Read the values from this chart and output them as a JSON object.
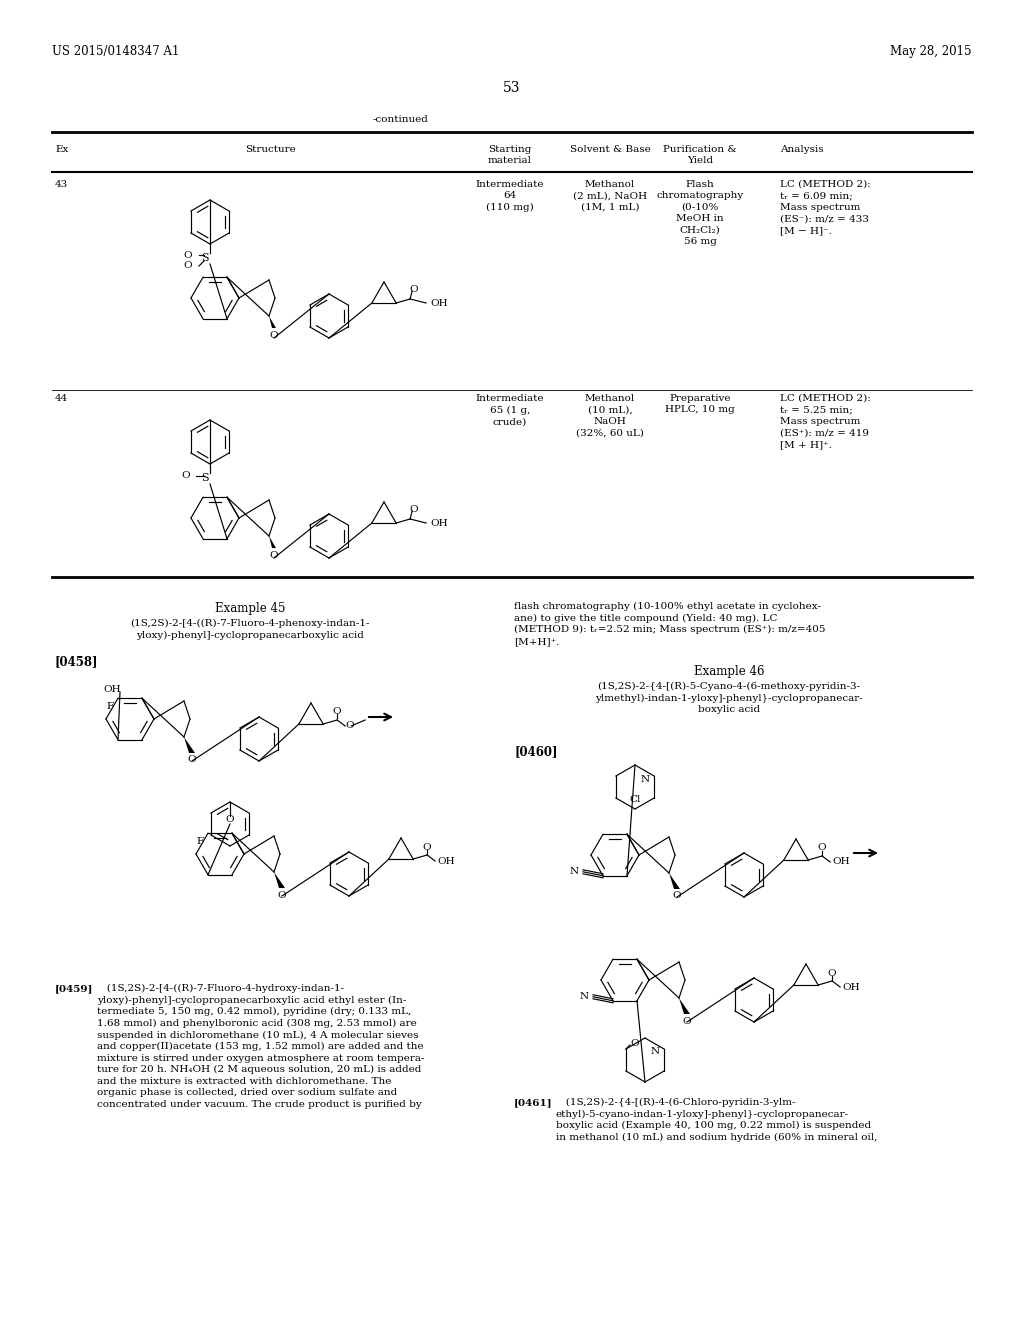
{
  "bg_color": "#ffffff",
  "header_left": "US 2015/0148347 A1",
  "header_right": "May 28, 2015",
  "page_number": "53",
  "continued_text": "-continued",
  "row_data": [
    {
      "ex": "43",
      "starting_material": "Intermediate\n64\n(110 mg)",
      "solvent_base": "Methanol\n(2 mL), NaOH\n(1M, 1 mL)",
      "purification_yield": "Flash\nchromatography\n(0-10%\nMeOH in\nCH₂Cl₂)\n56 mg",
      "analysis": "LC (METHOD 2):\ntᵣ = 6.09 min;\nMass spectrum\n(ES⁻): m/z = 433\n[M − H]⁻."
    },
    {
      "ex": "44",
      "starting_material": "Intermediate\n65 (1 g,\ncrude)",
      "solvent_base": "Methanol\n(10 mL),\nNaOH\n(32%, 60 uL)",
      "purification_yield": "Preparative\nHPLC, 10 mg",
      "analysis": "LC (METHOD 2):\ntᵣ = 5.25 min;\nMass spectrum\n(ES⁺): m/z = 419\n[M + H]⁺."
    }
  ],
  "example45_title": "Example 45",
  "example45_name": "(1S,2S)-2-[4-((R)-7-Fluoro-4-phenoxy-indan-1-\nyloxy)-phenyl]-cyclopropanecarboxylic acid",
  "example45_ref": "[0458]",
  "example45_cont_text": "flash chromatography (10-100% ethyl acetate in cyclohex-\nane) to give the title compound (Yield: 40 mg). LC\n(METHOD 9): tᵣ=2.52 min; Mass spectrum (ES⁺): m/z=405\n[M+H]⁺.",
  "example46_title": "Example 46",
  "example46_name": "(1S,2S)-2-{4-[(R)-5-Cyano-4-(6-methoxy-pyridin-3-\nylmethyl)-indan-1-yloxy]-phenyl}-cyclopropanecar-\nboxylic acid",
  "example46_ref": "[0460]",
  "ex45_para_label": "[0459]",
  "ex45_para_text": "   (1S,2S)-2-[4-((R)-7-Fluoro-4-hydroxy-indan-1-\nyloxy)-phenyl]-cyclopropanecarboxylic acid ethyl ester (In-\ntermediate 5, 150 mg, 0.42 mmol), pyridine (dry; 0.133 mL,\n1.68 mmol) and phenylboronic acid (308 mg, 2.53 mmol) are\nsuspended in dichloromethane (10 mL), 4 A molecular sieves\nand copper(II)acetate (153 mg, 1.52 mmol) are added and the\nmixture is stirred under oxygen atmosphere at room tempera-\nture for 20 h. NH₄OH (2 M aqueous solution, 20 mL) is added\nand the mixture is extracted with dichloromethane. The\norganic phase is collected, dried over sodium sulfate and\nconcentrated under vacuum. The crude product is purified by",
  "ex46_para_label": "[0461]",
  "ex46_para_text": "   (1S,2S)-2-{4-[(R)-4-(6-Chloro-pyridin-3-ylm-\nethyl)-5-cyano-indan-1-yloxy]-phenyl}-cyclopropanecar-\nboxylic acid (Example 40, 100 mg, 0.22 mmol) is suspended\nin methanol (10 mL) and sodium hydride (60% in mineral oil,"
}
